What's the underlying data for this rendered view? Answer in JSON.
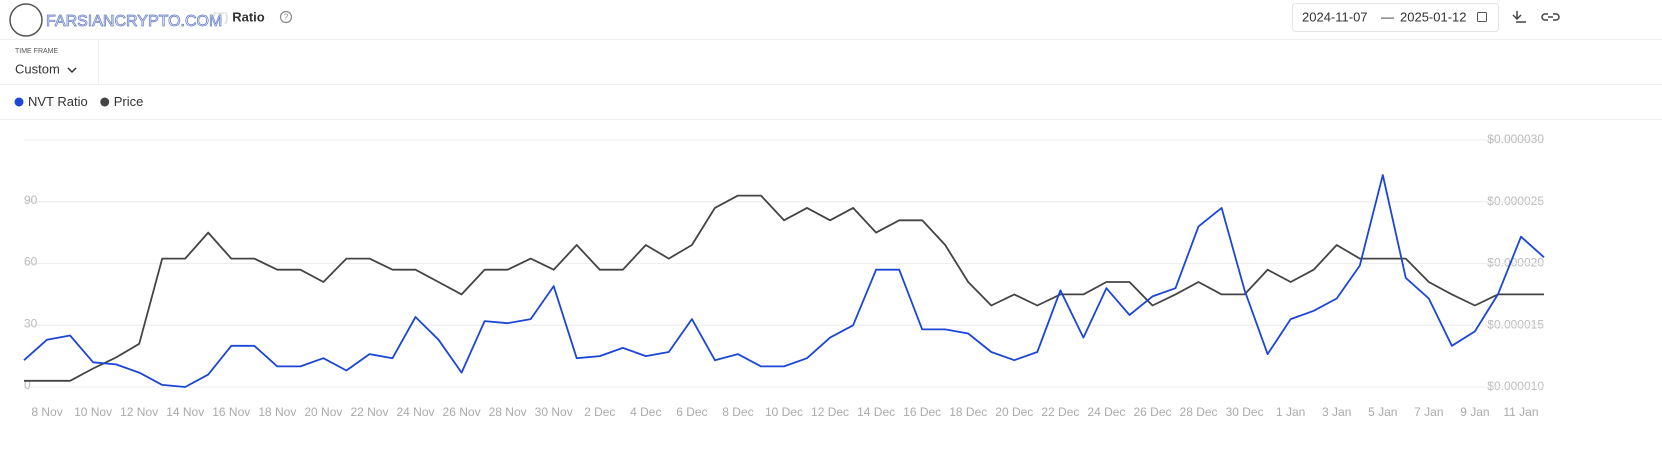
{
  "header": {
    "title": "(T) Ratio",
    "watermark": "FARSIANCRYPTO.COM",
    "date_from": "2024-11-07",
    "date_separator": "—",
    "date_to": "2025-01-12",
    "timeframe_label": "TIME FRAME",
    "timeframe_value": "Custom"
  },
  "chart_data": {
    "type": "line",
    "categories": [
      null,
      "8 Nov",
      null,
      "10 Nov",
      null,
      "12 Nov",
      null,
      "14 Nov",
      null,
      "16 Nov",
      null,
      "18 Nov",
      null,
      "20 Nov",
      null,
      "22 Nov",
      null,
      "24 Nov",
      null,
      "26 Nov",
      null,
      "28 Nov",
      null,
      "30 Nov",
      null,
      "2 Dec",
      null,
      "4 Dec",
      null,
      "6 Dec",
      null,
      "8 Dec",
      null,
      "10 Dec",
      null,
      "12 Dec",
      null,
      "14 Dec",
      null,
      "16 Dec",
      null,
      "18 Dec",
      null,
      "20 Dec",
      null,
      "22 Dec",
      null,
      "24 Dec",
      null,
      "26 Dec",
      null,
      "28 Dec",
      null,
      "30 Dec",
      null,
      "1 Jan",
      null,
      "3 Jan",
      null,
      "5 Jan",
      null,
      "7 Jan",
      null,
      "9 Jan",
      null,
      "11 Jan",
      null
    ],
    "series": [
      {
        "name": "NVT Ratio",
        "color": "#1c46d4",
        "values": [
          13,
          23,
          25,
          12,
          11,
          7,
          1,
          0,
          6,
          20,
          20,
          10,
          10,
          14,
          8,
          16,
          14,
          34,
          23,
          7,
          32,
          31,
          33,
          49,
          14,
          15,
          19,
          15,
          17,
          33,
          13,
          16,
          10,
          10,
          14,
          24,
          30,
          57,
          57,
          28,
          28,
          26,
          17,
          13,
          17,
          47,
          24,
          48,
          35,
          44,
          48,
          78,
          87,
          47,
          16,
          33,
          37,
          43,
          59,
          103,
          53,
          43,
          20,
          27,
          45,
          73,
          63
        ]
      },
      {
        "name": "Price",
        "color": "#444444",
        "axis": "y2",
        "values": [
          1.05e-05,
          1.05e-05,
          1.05e-05,
          1.15e-05,
          1.24e-05,
          1.35e-05,
          2.04e-05,
          2.04e-05,
          2.25e-05,
          2.04e-05,
          2.04e-05,
          1.95e-05,
          1.95e-05,
          1.85e-05,
          2.04e-05,
          2.04e-05,
          1.95e-05,
          1.95e-05,
          1.85e-05,
          1.75e-05,
          1.95e-05,
          1.95e-05,
          2.04e-05,
          1.95e-05,
          2.15e-05,
          1.95e-05,
          1.95e-05,
          2.15e-05,
          2.04e-05,
          2.15e-05,
          2.45e-05,
          2.55e-05,
          2.55e-05,
          2.35e-05,
          2.45e-05,
          2.35e-05,
          2.45e-05,
          2.25e-05,
          2.35e-05,
          2.35e-05,
          2.15e-05,
          1.85e-05,
          1.66e-05,
          1.75e-05,
          1.66e-05,
          1.75e-05,
          1.75e-05,
          1.85e-05,
          1.85e-05,
          1.66e-05,
          1.75e-05,
          1.85e-05,
          1.75e-05,
          1.75e-05,
          1.95e-05,
          1.85e-05,
          1.95e-05,
          2.15e-05,
          2.04e-05,
          2.04e-05,
          2.04e-05,
          1.85e-05,
          1.75e-05,
          1.66e-05,
          1.75e-05,
          1.75e-05,
          1.75e-05
        ]
      }
    ],
    "ylim": [
      0,
      120
    ],
    "yticks": [
      0,
      30,
      60,
      90
    ],
    "y2lim": [
      1e-05,
      3e-05
    ],
    "y2ticks": [
      {
        "value": 1e-05,
        "label": "$0.000010"
      },
      {
        "value": 1.5e-05,
        "label": "$0.000015"
      },
      {
        "value": 2e-05,
        "label": "$0.000020"
      },
      {
        "value": 2.5e-05,
        "label": "$0.000025"
      },
      {
        "value": 3e-05,
        "label": "$0.000030"
      }
    ],
    "grid": true
  }
}
